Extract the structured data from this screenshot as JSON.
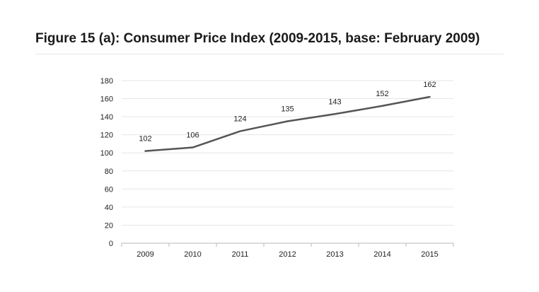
{
  "title": "Figure 15 (a): Consumer Price Index (2009-2015, base: February 2009)",
  "chart_data": {
    "type": "line",
    "x": [
      "2009",
      "2010",
      "2011",
      "2012",
      "2013",
      "2014",
      "2015"
    ],
    "series": [
      {
        "values": [
          102,
          106,
          124,
          135,
          143,
          152,
          162
        ]
      }
    ],
    "data_labels": [
      "102",
      "106",
      "124",
      "135",
      "143",
      "152",
      "162"
    ],
    "y_ticks": [
      "0",
      "20",
      "40",
      "60",
      "80",
      "100",
      "120",
      "140",
      "160",
      "180"
    ],
    "ylim": [
      0,
      180
    ],
    "grid": true,
    "legend": "none",
    "colors": {
      "line": "#555555",
      "grid": "#e6e6e6",
      "axis": "#b8b8b8",
      "text": "#222222"
    }
  }
}
